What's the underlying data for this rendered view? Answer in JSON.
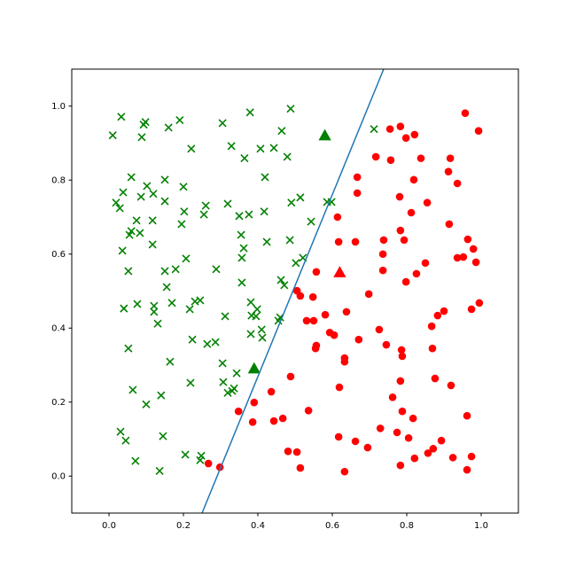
{
  "chart_data": {
    "type": "scatter",
    "xlim": [
      -0.1,
      1.1
    ],
    "ylim": [
      -0.1,
      1.1
    ],
    "xticks": [
      {
        "value": 0,
        "label": "0.0"
      },
      {
        "value": 0.2,
        "label": "0.2"
      },
      {
        "value": 0.4,
        "label": "0.4"
      },
      {
        "value": 0.6,
        "label": "0.6"
      },
      {
        "value": 0.8,
        "label": "0.8"
      },
      {
        "value": 1,
        "label": "1.0"
      }
    ],
    "yticks": [
      {
        "value": 0,
        "label": "0.0"
      },
      {
        "value": 0.2,
        "label": "0.2"
      },
      {
        "value": 0.4,
        "label": "0.4"
      },
      {
        "value": 0.6,
        "label": "0.6"
      },
      {
        "value": 0.8,
        "label": "0.8"
      },
      {
        "value": 1,
        "label": "1.0"
      }
    ],
    "grid": false,
    "series": [
      {
        "type": "scatter",
        "marker": "x",
        "color": "#008000",
        "x": [
          0.033,
          0.01,
          0.098,
          0.093,
          0.088,
          0.19,
          0.305,
          0.379,
          0.488,
          0.16,
          0.221,
          0.329,
          0.364,
          0.407,
          0.443,
          0.464,
          0.479,
          0.419,
          0.712,
          0.06,
          0.038,
          0.102,
          0.086,
          0.119,
          0.15,
          0.2,
          0.15,
          0.019,
          0.029,
          0.202,
          0.26,
          0.255,
          0.319,
          0.35,
          0.376,
          0.417,
          0.49,
          0.514,
          0.543,
          0.586,
          0.598,
          0.06,
          0.074,
          0.083,
          0.055,
          0.036,
          0.117,
          0.117,
          0.195,
          0.355,
          0.362,
          0.424,
          0.486,
          0.207,
          0.179,
          0.15,
          0.052,
          0.155,
          0.357,
          0.357,
          0.502,
          0.521,
          0.462,
          0.471,
          0.04,
          0.076,
          0.121,
          0.121,
          0.169,
          0.131,
          0.217,
          0.231,
          0.245,
          0.381,
          0.383,
          0.395,
          0.312,
          0.381,
          0.398,
          0.46,
          0.052,
          0.224,
          0.264,
          0.286,
          0.41,
          0.455,
          0.412,
          0.164,
          0.305,
          0.343,
          0.064,
          0.14,
          0.1,
          0.219,
          0.307,
          0.336,
          0.331,
          0.319,
          0.145,
          0.205,
          0.245,
          0.248,
          0.031,
          0.045,
          0.071,
          0.136,
          0.288
        ],
        "y": [
          0.971,
          0.921,
          0.957,
          0.95,
          0.916,
          0.962,
          0.954,
          0.983,
          0.993,
          0.942,
          0.885,
          0.892,
          0.859,
          0.885,
          0.887,
          0.933,
          0.863,
          0.808,
          0.938,
          0.808,
          0.767,
          0.784,
          0.755,
          0.763,
          0.801,
          0.782,
          0.743,
          0.739,
          0.724,
          0.715,
          0.731,
          0.707,
          0.736,
          0.703,
          0.707,
          0.715,
          0.739,
          0.753,
          0.688,
          0.741,
          0.741,
          0.662,
          0.691,
          0.657,
          0.652,
          0.609,
          0.691,
          0.626,
          0.681,
          0.652,
          0.616,
          0.633,
          0.638,
          0.588,
          0.559,
          0.554,
          0.554,
          0.511,
          0.59,
          0.523,
          0.576,
          0.59,
          0.53,
          0.516,
          0.453,
          0.465,
          0.46,
          0.444,
          0.468,
          0.412,
          0.451,
          0.472,
          0.475,
          0.47,
          0.434,
          0.432,
          0.432,
          0.384,
          0.451,
          0.429,
          0.345,
          0.369,
          0.357,
          0.362,
          0.396,
          0.42,
          0.374,
          0.309,
          0.305,
          0.278,
          0.233,
          0.218,
          0.194,
          0.252,
          0.254,
          0.237,
          0.23,
          0.225,
          0.108,
          0.058,
          0.043,
          0.055,
          0.12,
          0.096,
          0.041,
          0.014,
          0.559
        ]
      },
      {
        "type": "scatter",
        "marker": "o",
        "color": "#ff0000",
        "x": [
          0.957,
          0.993,
          0.755,
          0.783,
          0.798,
          0.821,
          0.917,
          0.717,
          0.757,
          0.838,
          0.667,
          0.819,
          0.912,
          0.936,
          0.781,
          0.667,
          0.855,
          0.812,
          0.614,
          0.914,
          0.783,
          0.662,
          0.617,
          0.738,
          0.793,
          0.964,
          0.979,
          0.736,
          0.936,
          0.952,
          0.986,
          0.85,
          0.826,
          0.736,
          0.557,
          0.798,
          0.505,
          0.514,
          0.548,
          0.698,
          0.995,
          0.9,
          0.883,
          0.974,
          0.581,
          0.638,
          0.531,
          0.55,
          0.593,
          0.605,
          0.726,
          0.867,
          0.671,
          0.745,
          0.557,
          0.555,
          0.786,
          0.788,
          0.633,
          0.633,
          0.869,
          0.488,
          0.876,
          0.783,
          0.436,
          0.619,
          0.919,
          0.762,
          0.39,
          0.788,
          0.348,
          0.536,
          0.817,
          0.962,
          0.467,
          0.443,
          0.386,
          0.729,
          0.774,
          0.617,
          0.805,
          0.662,
          0.893,
          0.695,
          0.871,
          0.857,
          0.481,
          0.505,
          0.924,
          0.974,
          0.821,
          0.267,
          0.298,
          0.514,
          0.783,
          0.633,
          0.962
        ],
        "y": [
          0.981,
          0.933,
          0.938,
          0.945,
          0.914,
          0.923,
          0.859,
          0.863,
          0.854,
          0.859,
          0.808,
          0.801,
          0.823,
          0.791,
          0.755,
          0.765,
          0.739,
          0.712,
          0.7,
          0.681,
          0.664,
          0.633,
          0.633,
          0.638,
          0.638,
          0.64,
          0.614,
          0.6,
          0.59,
          0.592,
          0.578,
          0.576,
          0.547,
          0.556,
          0.552,
          0.525,
          0.501,
          0.487,
          0.484,
          0.492,
          0.468,
          0.446,
          0.434,
          0.451,
          0.436,
          0.444,
          0.42,
          0.42,
          0.388,
          0.381,
          0.396,
          0.405,
          0.369,
          0.355,
          0.353,
          0.345,
          0.341,
          0.324,
          0.319,
          0.309,
          0.345,
          0.269,
          0.264,
          0.257,
          0.228,
          0.24,
          0.245,
          0.213,
          0.199,
          0.175,
          0.175,
          0.177,
          0.156,
          0.163,
          0.156,
          0.149,
          0.146,
          0.129,
          0.118,
          0.106,
          0.103,
          0.094,
          0.096,
          0.077,
          0.074,
          0.062,
          0.067,
          0.065,
          0.05,
          0.053,
          0.048,
          0.034,
          0.024,
          0.022,
          0.029,
          0.012,
          0.017
        ]
      },
      {
        "type": "scatter",
        "marker": "^",
        "color": "#008000",
        "x": [
          0.58,
          0.39
        ],
        "y": [
          0.92,
          0.29
        ]
      },
      {
        "type": "scatter",
        "marker": "^",
        "color": "#ff0000",
        "x": [
          0.62
        ],
        "y": [
          0.55
        ]
      },
      {
        "type": "line",
        "color": "#1f77b4",
        "x": [
          0.25,
          0.738
        ],
        "y": [
          -0.1,
          1.1
        ]
      }
    ]
  }
}
